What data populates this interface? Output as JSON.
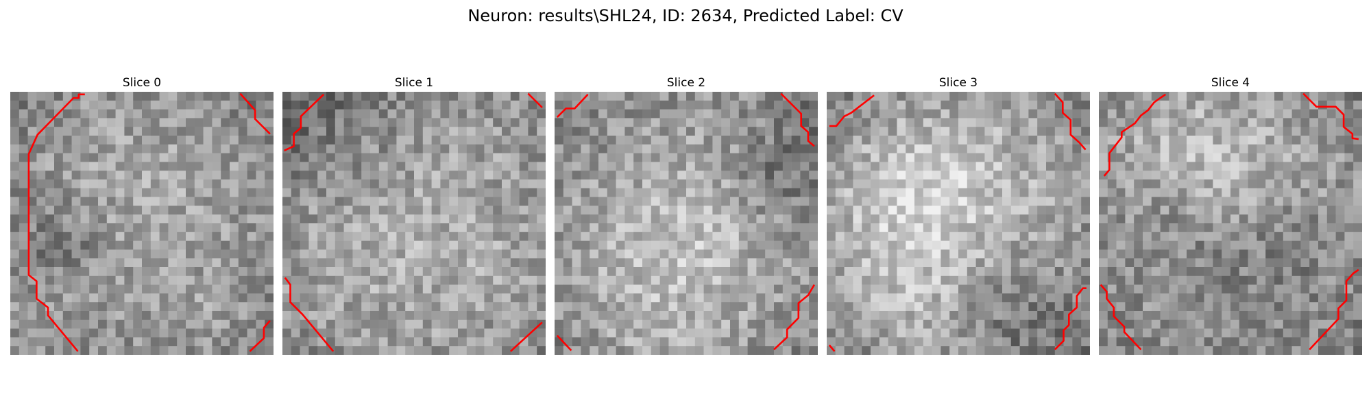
{
  "figure": {
    "title": "Neuron: results\\SHL24, ID: 2634, Predicted Label: CV"
  },
  "slices": [
    {
      "label": "Slice 0",
      "seed": 11,
      "vignette": 0.55
    },
    {
      "label": "Slice 1",
      "seed": 23,
      "vignette": 0.4
    },
    {
      "label": "Slice 2",
      "seed": 37,
      "vignette": 0.5
    },
    {
      "label": "Slice 3",
      "seed": 41,
      "vignette": 0.55
    },
    {
      "label": "Slice 4",
      "seed": 59,
      "vignette": 0.5
    }
  ],
  "colors": {
    "contour": "#ff0000",
    "background": "#ffffff",
    "text": "#000000"
  }
}
